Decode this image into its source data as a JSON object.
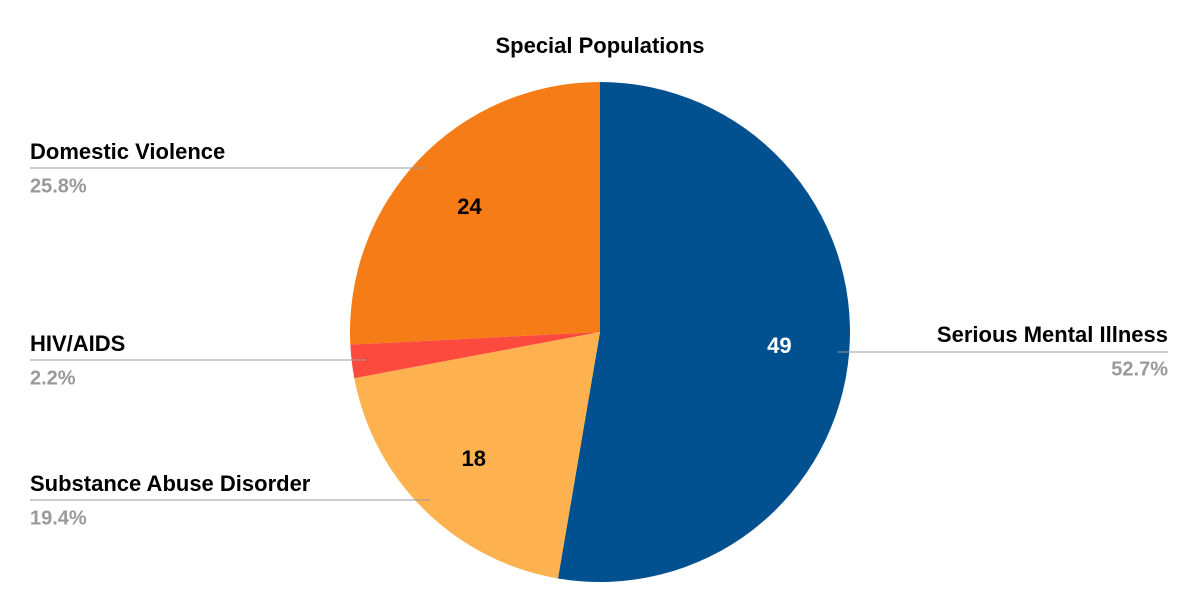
{
  "chart_data": {
    "type": "pie",
    "title": "Special Populations",
    "categories": [
      "Serious Mental Illness",
      "Substance Abuse Disorder",
      "HIV/AIDS",
      "Domestic Violence"
    ],
    "values": [
      49,
      18,
      2,
      24
    ],
    "percent_labels": [
      "52.7%",
      "19.4%",
      "2.2%",
      "25.8%"
    ],
    "colors": [
      "#01508f",
      "#fdb14f",
      "#fd4a3f",
      "#f57c16"
    ]
  }
}
